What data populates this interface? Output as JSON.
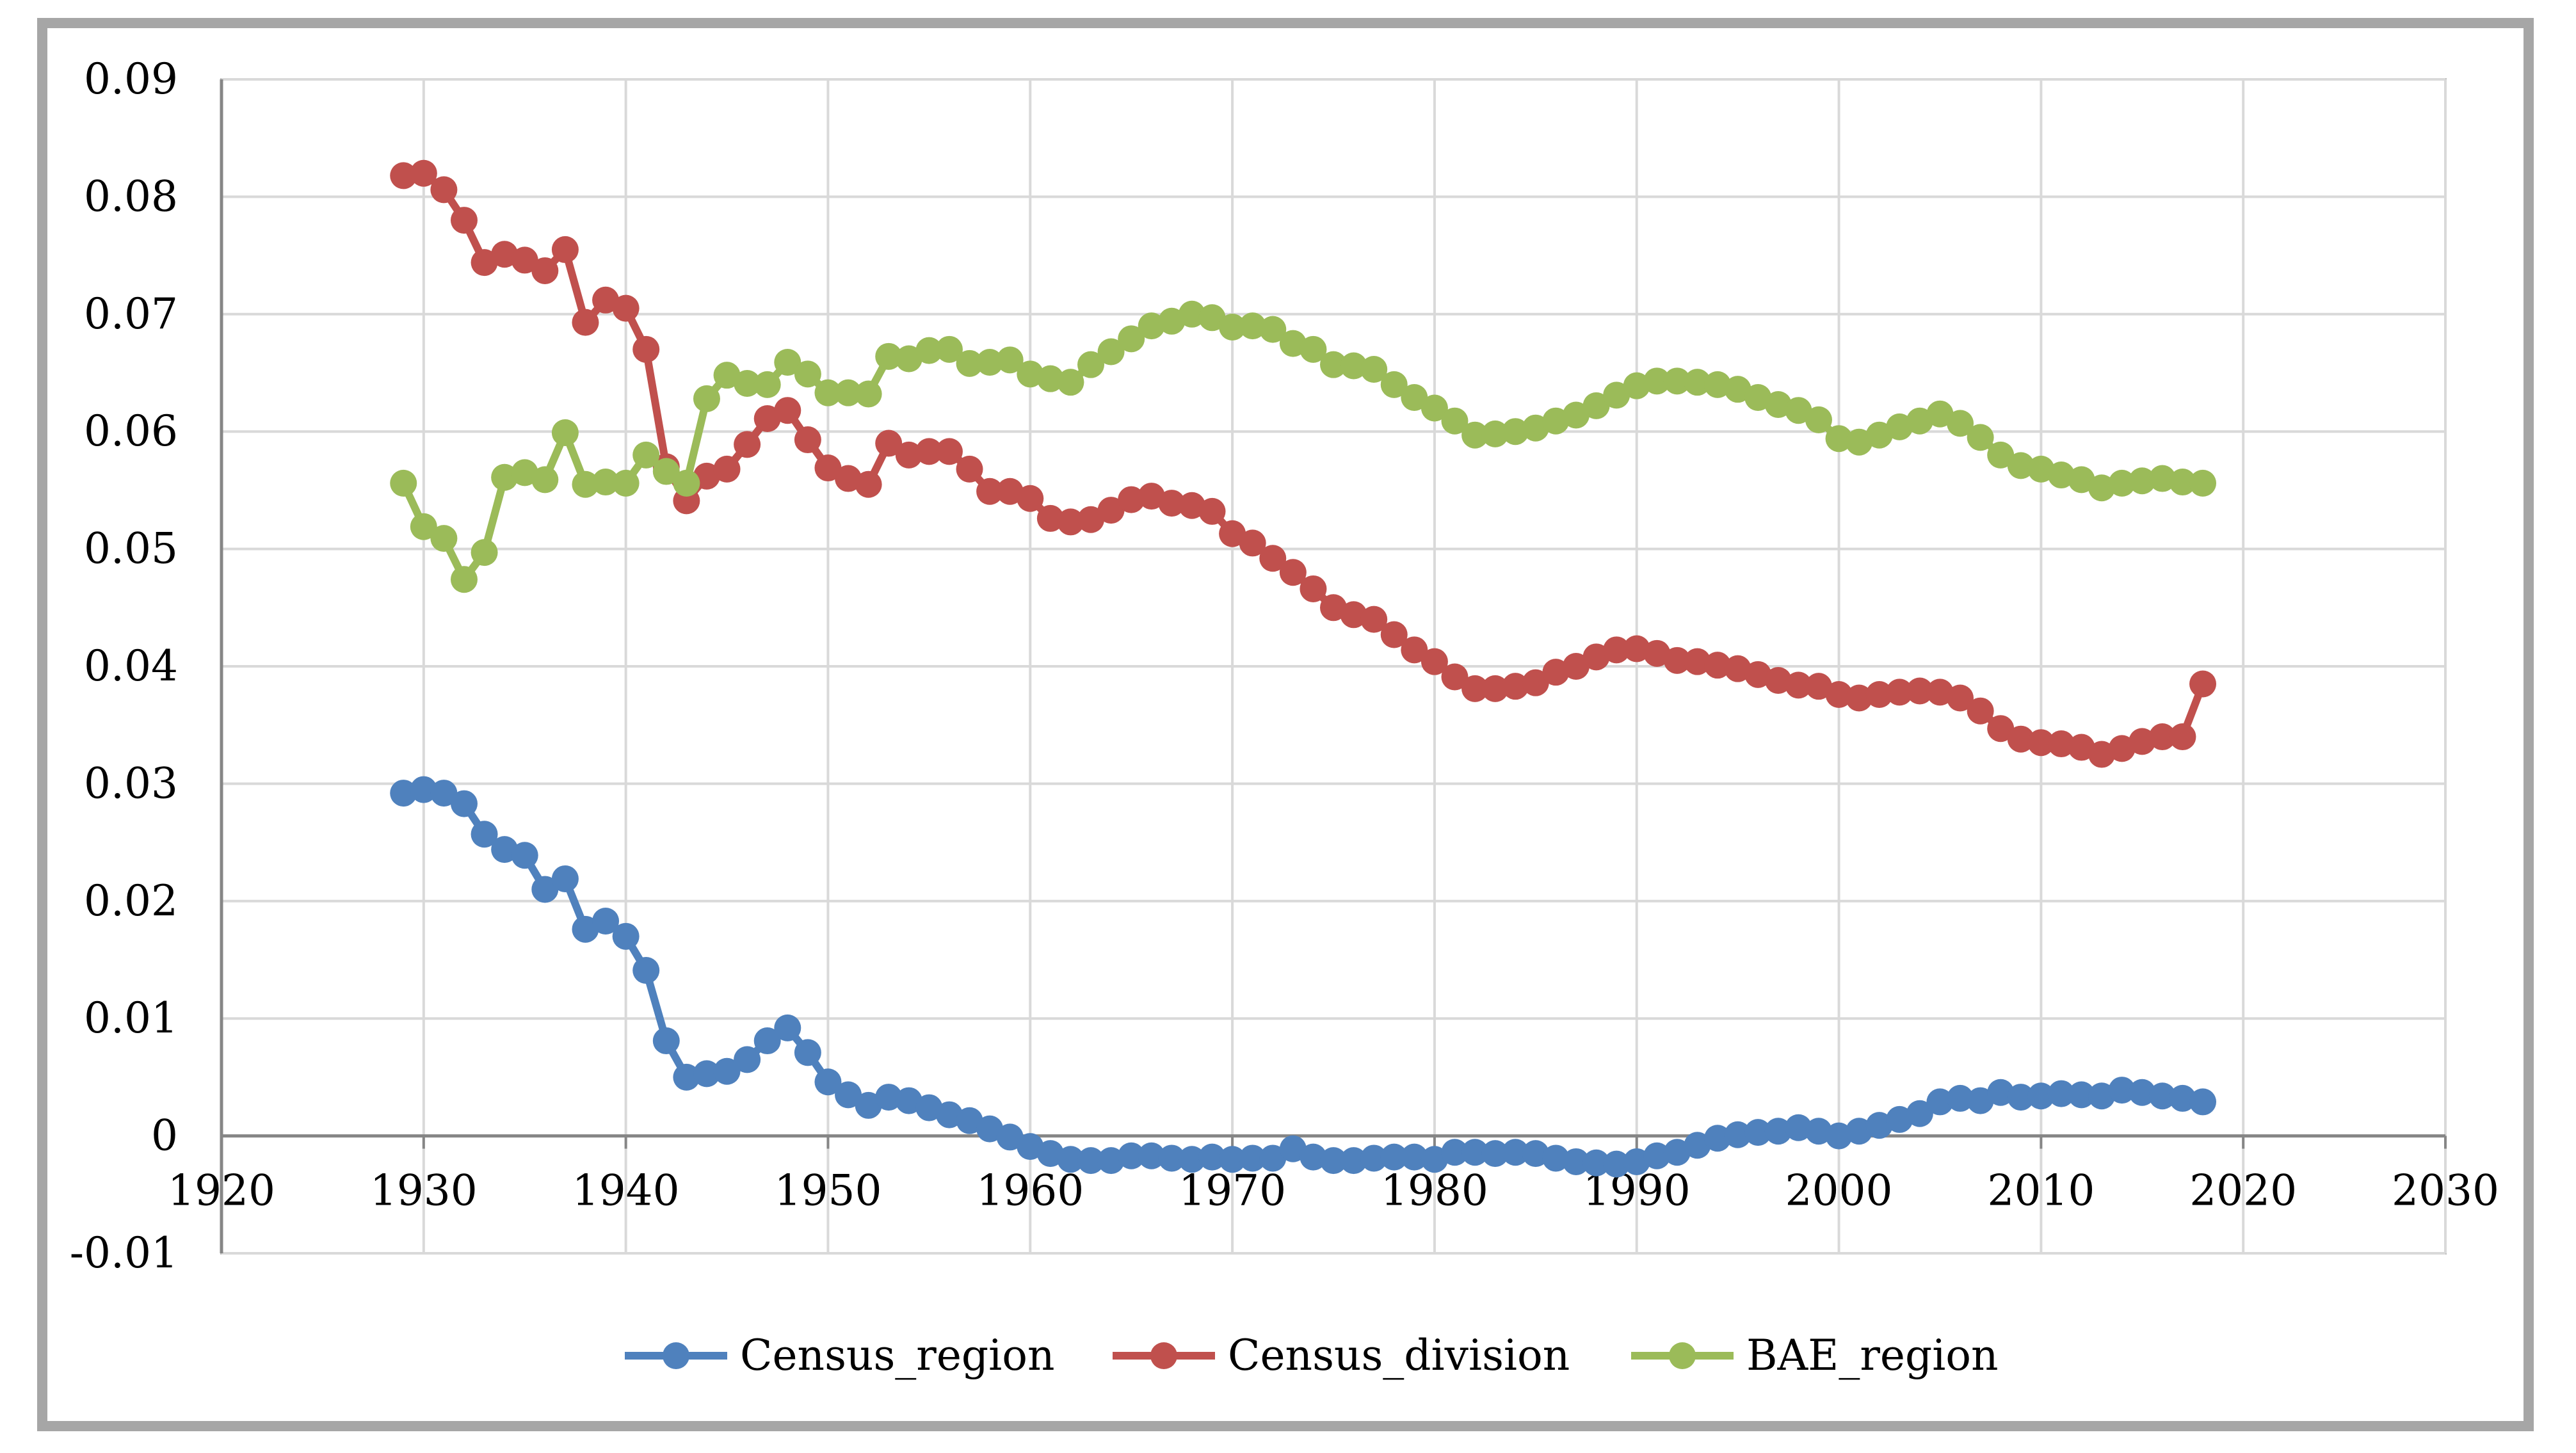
{
  "chart_data": {
    "type": "line",
    "title": "",
    "xlabel": "",
    "ylabel": "",
    "xlim": [
      1920,
      2030
    ],
    "ylim": [
      -0.01,
      0.09
    ],
    "x_ticks": [
      1920,
      1930,
      1940,
      1950,
      1960,
      1970,
      1980,
      1990,
      2000,
      2010,
      2020,
      2030
    ],
    "y_ticks": [
      -0.01,
      0,
      0.01,
      0.02,
      0.03,
      0.04,
      0.05,
      0.06,
      0.07,
      0.08,
      0.09
    ],
    "x_tick_labels": [
      "1920",
      "1930",
      "1940",
      "1950",
      "1960",
      "1970",
      "1980",
      "1990",
      "2000",
      "2010",
      "2020",
      "2030"
    ],
    "y_tick_labels": [
      "-0.01",
      "0",
      "0.01",
      "0.02",
      "0.03",
      "0.04",
      "0.05",
      "0.06",
      "0.07",
      "0.08",
      "0.09"
    ],
    "grid": true,
    "legend_position": "bottom",
    "x": [
      1929,
      1930,
      1931,
      1932,
      1933,
      1934,
      1935,
      1936,
      1937,
      1938,
      1939,
      1940,
      1941,
      1942,
      1943,
      1944,
      1945,
      1946,
      1947,
      1948,
      1949,
      1950,
      1951,
      1952,
      1953,
      1954,
      1955,
      1956,
      1957,
      1958,
      1959,
      1960,
      1961,
      1962,
      1963,
      1964,
      1965,
      1966,
      1967,
      1968,
      1969,
      1970,
      1971,
      1972,
      1973,
      1974,
      1975,
      1976,
      1977,
      1978,
      1979,
      1980,
      1981,
      1982,
      1983,
      1984,
      1985,
      1986,
      1987,
      1988,
      1989,
      1990,
      1991,
      1992,
      1993,
      1994,
      1995,
      1996,
      1997,
      1998,
      1999,
      2000,
      2001,
      2002,
      2003,
      2004,
      2005,
      2006,
      2007,
      2008,
      2009,
      2010,
      2011,
      2012,
      2013,
      2014,
      2015,
      2016,
      2017,
      2018
    ],
    "series": [
      {
        "name": "Census_region",
        "color": "#4f81bd",
        "values": [
          0.0292,
          0.0295,
          0.0292,
          0.0283,
          0.0257,
          0.0244,
          0.0239,
          0.021,
          0.0219,
          0.0176,
          0.0183,
          0.017,
          0.0141,
          0.0081,
          0.005,
          0.0053,
          0.0055,
          0.0065,
          0.0081,
          0.0092,
          0.0071,
          0.0046,
          0.0035,
          0.0026,
          0.0033,
          0.003,
          0.0024,
          0.0018,
          0.0013,
          0.0006,
          -0.0001,
          -0.0009,
          -0.0015,
          -0.002,
          -0.0021,
          -0.0021,
          -0.0017,
          -0.0017,
          -0.0019,
          -0.002,
          -0.0018,
          -0.002,
          -0.0019,
          -0.0019,
          -0.0011,
          -0.0018,
          -0.0021,
          -0.0021,
          -0.0019,
          -0.0018,
          -0.0018,
          -0.002,
          -0.0014,
          -0.0014,
          -0.0015,
          -0.0014,
          -0.0015,
          -0.0019,
          -0.0022,
          -0.0023,
          -0.0024,
          -0.0022,
          -0.0017,
          -0.0014,
          -0.0008,
          -0.0002,
          0.0001,
          0.0003,
          0.0004,
          0.0007,
          0.0004,
          0.0,
          0.0004,
          0.0009,
          0.0014,
          0.0019,
          0.0029,
          0.0032,
          0.003,
          0.0037,
          0.0033,
          0.0034,
          0.0036,
          0.0035,
          0.0034,
          0.0039,
          0.0037,
          0.0034,
          0.0032,
          0.0029
        ]
      },
      {
        "name": "Census_division",
        "color": "#c0504d",
        "values": [
          0.0818,
          0.082,
          0.0806,
          0.078,
          0.0744,
          0.0751,
          0.0746,
          0.0737,
          0.0755,
          0.0693,
          0.0712,
          0.0705,
          0.067,
          0.057,
          0.0541,
          0.0562,
          0.0568,
          0.0589,
          0.0611,
          0.0618,
          0.0593,
          0.0569,
          0.056,
          0.0555,
          0.059,
          0.058,
          0.0583,
          0.0583,
          0.0568,
          0.0549,
          0.0549,
          0.0543,
          0.0526,
          0.0523,
          0.0525,
          0.0533,
          0.0542,
          0.0545,
          0.0539,
          0.0537,
          0.0532,
          0.0513,
          0.0505,
          0.0492,
          0.048,
          0.0466,
          0.045,
          0.0444,
          0.044,
          0.0427,
          0.0414,
          0.0404,
          0.0391,
          0.0381,
          0.0381,
          0.0383,
          0.0386,
          0.0395,
          0.04,
          0.0408,
          0.0414,
          0.0415,
          0.0411,
          0.0405,
          0.0404,
          0.0401,
          0.0398,
          0.0393,
          0.0388,
          0.0384,
          0.0383,
          0.0376,
          0.0373,
          0.0376,
          0.0378,
          0.0379,
          0.0378,
          0.0373,
          0.0362,
          0.0347,
          0.0338,
          0.0335,
          0.0334,
          0.0331,
          0.0325,
          0.033,
          0.0336,
          0.034,
          0.034,
          0.0385
        ]
      },
      {
        "name": "BAE_region",
        "color": "#9bbb59",
        "values": [
          0.0556,
          0.0519,
          0.0509,
          0.0474,
          0.0497,
          0.0561,
          0.0565,
          0.0559,
          0.0599,
          0.0555,
          0.0557,
          0.0556,
          0.058,
          0.0566,
          0.0556,
          0.0628,
          0.0648,
          0.0641,
          0.064,
          0.0659,
          0.0649,
          0.0633,
          0.0633,
          0.0632,
          0.0664,
          0.0662,
          0.0669,
          0.067,
          0.0658,
          0.0659,
          0.0661,
          0.0649,
          0.0645,
          0.0642,
          0.0657,
          0.0668,
          0.0679,
          0.069,
          0.0694,
          0.07,
          0.0697,
          0.0689,
          0.069,
          0.0687,
          0.0675,
          0.067,
          0.0657,
          0.0656,
          0.0653,
          0.064,
          0.0629,
          0.062,
          0.0609,
          0.0597,
          0.0598,
          0.06,
          0.0603,
          0.0609,
          0.0614,
          0.0622,
          0.0631,
          0.0639,
          0.0643,
          0.0643,
          0.0642,
          0.064,
          0.0636,
          0.0629,
          0.0623,
          0.0618,
          0.061,
          0.0594,
          0.0591,
          0.0597,
          0.0604,
          0.0609,
          0.0615,
          0.0607,
          0.0595,
          0.058,
          0.0571,
          0.0568,
          0.0563,
          0.0559,
          0.0552,
          0.0556,
          0.0558,
          0.056,
          0.0557,
          0.0556
        ]
      }
    ]
  }
}
